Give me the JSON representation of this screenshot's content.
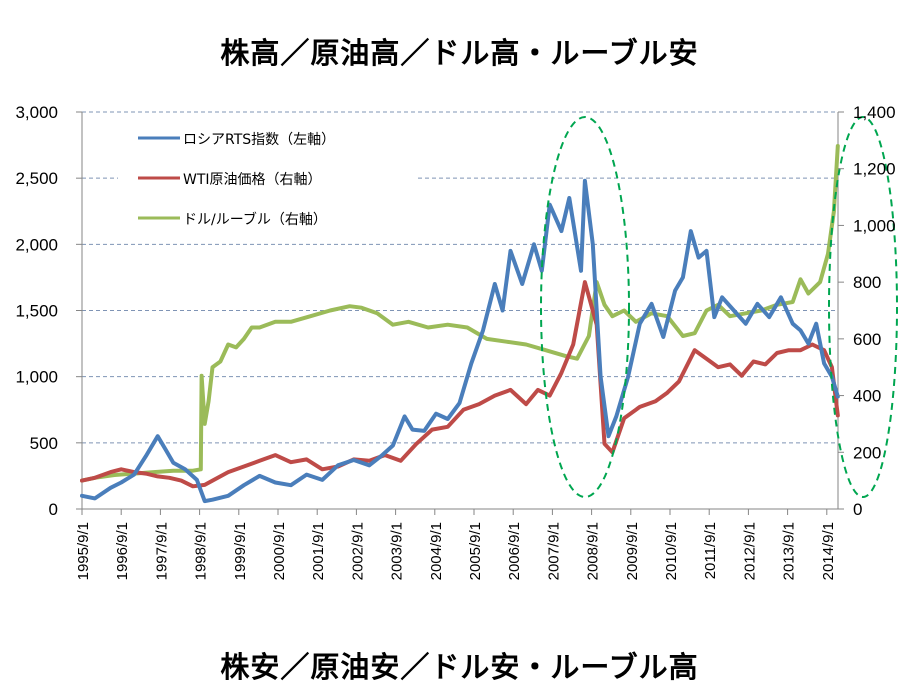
{
  "headlines": {
    "top": "株高／原油高／ドル高・ルーブル安",
    "bottom": "株安／原油安／ドル安・ルーブル高"
  },
  "chart_data": {
    "type": "line",
    "title": "",
    "xlabel": "",
    "ylabel_left": "",
    "ylabel_right": "",
    "x_tick_labels": [
      "1995/9/1",
      "1996/9/1",
      "1997/9/1",
      "1998/9/1",
      "1999/9/1",
      "2000/9/1",
      "2001/9/1",
      "2002/9/1",
      "2003/9/1",
      "2004/9/1",
      "2005/9/1",
      "2006/9/1",
      "2007/9/1",
      "2008/9/1",
      "2009/9/1",
      "2010/9/1",
      "2011/9/1",
      "2012/9/1",
      "2013/9/1",
      "2014/9/1"
    ],
    "xlim": [
      1995.67,
      2014.97
    ],
    "ylim_left": [
      0,
      3000
    ],
    "ylim_right": [
      0,
      1400
    ],
    "left_ticks": [
      "0",
      "500",
      "1,000",
      "1,500",
      "2,000",
      "2,500",
      "3,000"
    ],
    "left_tick_values": [
      0,
      500,
      1000,
      1500,
      2000,
      2500,
      3000
    ],
    "right_ticks": [
      "0",
      "200",
      "400",
      "600",
      "800",
      "1,000",
      "1,200",
      "1,400"
    ],
    "right_tick_values": [
      0,
      200,
      400,
      600,
      800,
      1000,
      1200,
      1400
    ],
    "grid": true,
    "legend_position": "top-left",
    "series": [
      {
        "name": "ロシアRTS指数（左軸）",
        "axis": "left",
        "color": "#4a7ebb",
        "x": [
          1995.67,
          1996.0,
          1996.4,
          1996.67,
          1997.0,
          1997.3,
          1997.6,
          1997.8,
          1998.0,
          1998.3,
          1998.6,
          1998.8,
          1999.0,
          1999.4,
          1999.8,
          2000.2,
          2000.6,
          2001.0,
          2001.4,
          2001.8,
          2002.2,
          2002.6,
          2003.0,
          2003.3,
          2003.6,
          2003.9,
          2004.1,
          2004.4,
          2004.7,
          2005.0,
          2005.3,
          2005.6,
          2005.9,
          2006.2,
          2006.4,
          2006.6,
          2006.9,
          2007.2,
          2007.4,
          2007.6,
          2007.9,
          2008.1,
          2008.4,
          2008.5,
          2008.7,
          2008.9,
          2009.1,
          2009.3,
          2009.6,
          2009.9,
          2010.2,
          2010.5,
          2010.8,
          2011.0,
          2011.2,
          2011.4,
          2011.6,
          2011.8,
          2012.0,
          2012.3,
          2012.6,
          2012.9,
          2013.2,
          2013.5,
          2013.8,
          2014.0,
          2014.2,
          2014.4,
          2014.6,
          2014.8,
          2014.95
        ],
        "values": [
          100,
          80,
          160,
          200,
          260,
          400,
          550,
          450,
          350,
          300,
          220,
          60,
          70,
          100,
          180,
          250,
          200,
          180,
          260,
          220,
          330,
          370,
          330,
          400,
          480,
          700,
          600,
          590,
          720,
          680,
          800,
          1100,
          1350,
          1700,
          1500,
          1950,
          1700,
          2000,
          1800,
          2300,
          2100,
          2350,
          1800,
          2480,
          2000,
          1000,
          550,
          700,
          1000,
          1400,
          1550,
          1300,
          1650,
          1750,
          2100,
          1900,
          1950,
          1450,
          1600,
          1500,
          1400,
          1550,
          1450,
          1600,
          1400,
          1350,
          1250,
          1400,
          1100,
          1000,
          850
        ]
      },
      {
        "name": "WTI原油価格（右軸）",
        "axis": "right",
        "color": "#be4b48",
        "x": [
          1995.67,
          1996.0,
          1996.4,
          1996.67,
          1997.0,
          1997.3,
          1997.6,
          1997.9,
          1998.2,
          1998.5,
          1998.8,
          1999.0,
          1999.4,
          1999.8,
          2000.2,
          2000.6,
          2001.0,
          2001.4,
          2001.8,
          2002.2,
          2002.6,
          2003.0,
          2003.4,
          2003.8,
          2004.2,
          2004.6,
          2005.0,
          2005.4,
          2005.8,
          2006.2,
          2006.6,
          2007.0,
          2007.3,
          2007.6,
          2007.9,
          2008.2,
          2008.5,
          2008.8,
          2009.0,
          2009.2,
          2009.5,
          2009.9,
          2010.3,
          2010.6,
          2010.9,
          2011.3,
          2011.6,
          2011.9,
          2012.2,
          2012.5,
          2012.8,
          2013.1,
          2013.4,
          2013.7,
          2014.0,
          2014.3,
          2014.6,
          2014.8,
          2014.95
        ],
        "values": [
          100,
          110,
          130,
          140,
          130,
          125,
          115,
          110,
          100,
          80,
          85,
          100,
          130,
          150,
          170,
          190,
          165,
          175,
          140,
          150,
          175,
          170,
          190,
          170,
          230,
          280,
          290,
          350,
          370,
          400,
          420,
          370,
          420,
          400,
          480,
          580,
          800,
          650,
          230,
          200,
          320,
          360,
          380,
          410,
          450,
          560,
          530,
          500,
          510,
          470,
          520,
          510,
          550,
          560,
          560,
          580,
          560,
          500,
          330
        ]
      },
      {
        "name": "ドル/ルーブル（右軸）",
        "axis": "right",
        "color": "#9bbb59",
        "x": [
          1995.67,
          1996.0,
          1996.5,
          1997.0,
          1997.5,
          1998.0,
          1998.5,
          1998.7,
          1998.72,
          1998.8,
          1998.9,
          1999.0,
          1999.2,
          1999.4,
          1999.6,
          1999.8,
          2000.0,
          2000.2,
          2000.6,
          2001.0,
          2001.5,
          2002.0,
          2002.5,
          2002.8,
          2003.2,
          2003.6,
          2004.0,
          2004.5,
          2005.0,
          2005.5,
          2006.0,
          2006.5,
          2007.0,
          2007.5,
          2008.0,
          2008.3,
          2008.6,
          2008.8,
          2009.0,
          2009.2,
          2009.5,
          2009.8,
          2010.2,
          2010.6,
          2011.0,
          2011.3,
          2011.6,
          2011.9,
          2012.2,
          2012.6,
          2013.0,
          2013.4,
          2013.8,
          2014.0,
          2014.2,
          2014.5,
          2014.7,
          2014.85,
          2014.95
        ],
        "values": [
          100,
          110,
          120,
          125,
          130,
          135,
          135,
          140,
          470,
          300,
          380,
          500,
          520,
          580,
          570,
          600,
          640,
          640,
          660,
          660,
          680,
          700,
          715,
          710,
          690,
          650,
          660,
          640,
          650,
          640,
          600,
          590,
          580,
          560,
          540,
          530,
          610,
          800,
          720,
          680,
          700,
          660,
          690,
          680,
          610,
          620,
          700,
          720,
          680,
          690,
          700,
          720,
          730,
          810,
          760,
          800,
          900,
          1050,
          1280
        ]
      }
    ]
  },
  "annotations": {
    "highlight_ellipses": 2,
    "ellipse_color": "#00a650"
  }
}
